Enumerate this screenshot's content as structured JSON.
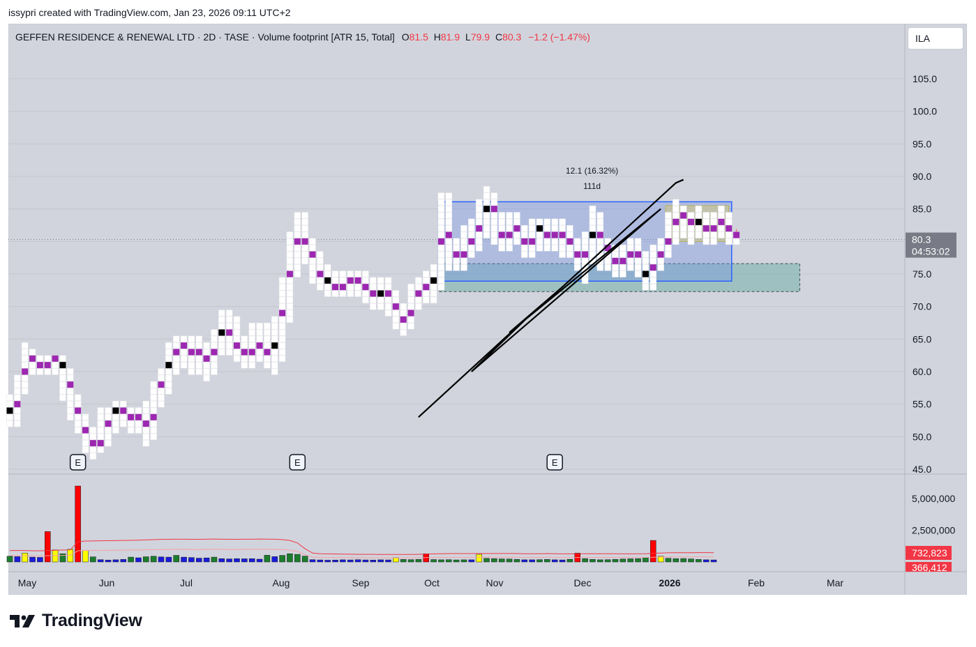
{
  "attribution": "issypri created with TradingView.com, Jan 23, 2026 09:11 UTC+2",
  "legend": {
    "symbol": "GEFFEN RESIDENCE & RENEWAL LTD · 2D · TASE · Volume footprint [ATR 15, Total]",
    "o_label": "O",
    "o_value": "81.5",
    "h_label": "H",
    "h_value": "81.9",
    "l_label": "L",
    "l_value": "79.9",
    "c_label": "C",
    "c_value": "80.3",
    "change": "−1.2 (−1.47%)"
  },
  "currency": "ILA",
  "price_tag": {
    "price": "80.3",
    "countdown": "04:53:02"
  },
  "measure": {
    "change": "12.1 (16.32%)",
    "duration": "111d"
  },
  "volume_tags": [
    "732,823",
    "366,412"
  ],
  "earnings_label": "E",
  "brand": "TradingView",
  "colors": {
    "up": "#26a69a",
    "down": "#ef5350",
    "poc": "#9c27b0",
    "ma": "#f23645",
    "box_blue": "#2962ff",
    "box_teal": "#5fa8a0",
    "vol_green": "#1b7d2b",
    "vol_blue": "#1b1bdc",
    "vol_red": "#ff0000",
    "vol_yellow": "#ffff00"
  },
  "chart_data": [
    {
      "type": "candlestick-footprint",
      "title": "GEFFEN RESIDENCE & RENEWAL LTD · 2D · TASE · Volume footprint [ATR 15, Total]",
      "y_ticks": [
        45.0,
        50.0,
        55.0,
        60.0,
        65.0,
        70.0,
        75.0,
        80.0,
        85.0,
        90.0,
        95.0,
        100.0,
        105.0
      ],
      "y_tick_labels": [
        "45.0",
        "50.0",
        "55.0",
        "60.0",
        "65.0",
        "70.0",
        "75.0",
        "80.0",
        "85.0",
        "90.0",
        "95.0",
        "100.0",
        "105.0"
      ],
      "x_tick_labels": [
        "May",
        "Jun",
        "Jul",
        "Aug",
        "Sep",
        "Oct",
        "Nov",
        "Dec",
        "2026",
        "Feb",
        "Mar"
      ],
      "ylim": [
        45,
        108
      ],
      "last_price": 80.3,
      "bars": [
        [
          55,
          52,
          56,
          51.5
        ],
        [
          52,
          58,
          59,
          52
        ],
        [
          58,
          62,
          64,
          57
        ],
        [
          62,
          61,
          63,
          59.5
        ],
        [
          61,
          60,
          62,
          59.5
        ],
        [
          60,
          61,
          62,
          60
        ],
        [
          61,
          62,
          62,
          60
        ],
        [
          62,
          60,
          62,
          56
        ],
        [
          60,
          55,
          60,
          53
        ],
        [
          55,
          52,
          56,
          51
        ],
        [
          52,
          49,
          53,
          48
        ],
        [
          49,
          48,
          51,
          47
        ],
        [
          48,
          50,
          54,
          47.5
        ],
        [
          50,
          53,
          54,
          49
        ],
        [
          53,
          54,
          55,
          51
        ],
        [
          54,
          53,
          55,
          52
        ],
        [
          53,
          52,
          54,
          51
        ],
        [
          52,
          54,
          54,
          51
        ],
        [
          54,
          50,
          55,
          49
        ],
        [
          50,
          56,
          58,
          50
        ],
        [
          56,
          59,
          60,
          55
        ],
        [
          59,
          62,
          64,
          57
        ],
        [
          62,
          64,
          65,
          60
        ],
        [
          64,
          63,
          65,
          61
        ],
        [
          63,
          62,
          65,
          60
        ],
        [
          62,
          63,
          65,
          60
        ],
        [
          63,
          61,
          64,
          59
        ],
        [
          61,
          64,
          66,
          60
        ],
        [
          64,
          67,
          69,
          63
        ],
        [
          67,
          65,
          69,
          63
        ],
        [
          65,
          63,
          68,
          62
        ],
        [
          63,
          62,
          65,
          61
        ],
        [
          62,
          63,
          67,
          61
        ],
        [
          63,
          64,
          67,
          62
        ],
        [
          64,
          62,
          67,
          61
        ],
        [
          62,
          66,
          68,
          60
        ],
        [
          66,
          72,
          74,
          62
        ],
        [
          72,
          78,
          81,
          68
        ],
        [
          78,
          81,
          84,
          75
        ],
        [
          81,
          79,
          84,
          77
        ],
        [
          79,
          76,
          80,
          74
        ],
        [
          76,
          74,
          78,
          73
        ],
        [
          74,
          73,
          76,
          71.5
        ],
        [
          73,
          72,
          75,
          71.5
        ],
        [
          72,
          74,
          75,
          71.5
        ],
        [
          74,
          73,
          75,
          72
        ],
        [
          73,
          74,
          75,
          72
        ],
        [
          74,
          72,
          75,
          71
        ],
        [
          72,
          71,
          74,
          70
        ],
        [
          71,
          73,
          74,
          70
        ],
        [
          73,
          71,
          74,
          69
        ],
        [
          71,
          69,
          72,
          67
        ],
        [
          69,
          67,
          70,
          66
        ],
        [
          67,
          71,
          73,
          67
        ],
        [
          71,
          72,
          74,
          70
        ],
        [
          72,
          73,
          75,
          71
        ],
        [
          73,
          75,
          76,
          71
        ],
        [
          75,
          84,
          87,
          73
        ],
        [
          84,
          78,
          87,
          76
        ],
        [
          78,
          77,
          80,
          76
        ],
        [
          77,
          79,
          82,
          76
        ],
        [
          79,
          81,
          83,
          78
        ],
        [
          81,
          83,
          86,
          79
        ],
        [
          83,
          87,
          88,
          81
        ],
        [
          87,
          82,
          87,
          80
        ],
        [
          82,
          80,
          84,
          79
        ],
        [
          80,
          82,
          84,
          79
        ],
        [
          82,
          81,
          84,
          80
        ],
        [
          81,
          79,
          82,
          78
        ],
        [
          79,
          81,
          83,
          78
        ],
        [
          81,
          82,
          83,
          79
        ],
        [
          82,
          80,
          83,
          79
        ],
        [
          80,
          82,
          83,
          79
        ],
        [
          82,
          80,
          83,
          78
        ],
        [
          80,
          79,
          82,
          78
        ],
        [
          79,
          77,
          80,
          76
        ],
        [
          77,
          78,
          81,
          74
        ],
        [
          78,
          83,
          85,
          77
        ],
        [
          83,
          79,
          84,
          76
        ],
        [
          79,
          78,
          80,
          76
        ],
        [
          78,
          76,
          79,
          75
        ],
        [
          76,
          77,
          79,
          75
        ],
        [
          77,
          79,
          80,
          76
        ],
        [
          79,
          76,
          80,
          75
        ],
        [
          76,
          74,
          78,
          73
        ],
        [
          74,
          77,
          79,
          73
        ],
        [
          77,
          79,
          80,
          76
        ],
        [
          79,
          81,
          84,
          78
        ],
        [
          81,
          85,
          86,
          80
        ],
        [
          85,
          83,
          85,
          81
        ],
        [
          83,
          82,
          84,
          80
        ],
        [
          82,
          83,
          85,
          81
        ],
        [
          83,
          81,
          84,
          80
        ],
        [
          81,
          82,
          84,
          80
        ],
        [
          82,
          83,
          85,
          81
        ],
        [
          83,
          81,
          84,
          80
        ],
        [
          81.5,
          80.3,
          81.9,
          79.9
        ]
      ],
      "annotations": {
        "zigzag_path": [
          [
            54,
            53
          ],
          [
            69,
            69
          ],
          [
            61,
            60
          ],
          [
            86,
            85
          ],
          [
            66,
            66
          ],
          [
            73,
            73
          ],
          [
            88,
            89
          ],
          [
            89,
            89.5
          ]
        ],
        "range_box": {
          "top": 86.1,
          "bottom": 73.9,
          "start": 57,
          "end": 95
        },
        "support_zone": {
          "top": 76.6,
          "bottom": 72.3,
          "start": 57,
          "end": 104
        },
        "consolidation_box": {
          "top": 85.5,
          "bottom": 80.0,
          "start": 87,
          "end": 95
        },
        "earnings_markers": [
          9,
          38,
          72
        ]
      }
    },
    {
      "type": "bar",
      "title": "Volume",
      "y_tick_labels": [
        "5,000,000",
        "2,500,000"
      ],
      "ylim": [
        0,
        6500000
      ],
      "highlighted_values": [
        "732,823",
        "366,412"
      ],
      "values": [
        450000,
        420000,
        700000,
        380000,
        360000,
        2400000,
        950000,
        650000,
        1000000,
        6000000,
        900000,
        400000,
        180000,
        150000,
        170000,
        200000,
        380000,
        330000,
        410000,
        450000,
        400000,
        380000,
        520000,
        380000,
        350000,
        300000,
        320000,
        380000,
        260000,
        240000,
        260000,
        250000,
        260000,
        220000,
        530000,
        420000,
        520000,
        650000,
        600000,
        460000,
        180000,
        160000,
        140000,
        150000,
        170000,
        160000,
        180000,
        160000,
        150000,
        170000,
        160000,
        350000,
        200000,
        180000,
        200000,
        650000,
        190000,
        170000,
        180000,
        160000,
        170000,
        170000,
        600000,
        280000,
        260000,
        240000,
        230000,
        200000,
        170000,
        170000,
        180000,
        200000,
        170000,
        160000,
        210000,
        700000,
        260000,
        200000,
        170000,
        180000,
        200000,
        230000,
        250000,
        260000,
        350000,
        1700000,
        450000,
        290000,
        260000,
        270000,
        240000,
        200000,
        170000,
        160000
      ],
      "volume_ma": [
        900000,
        900000,
        900000,
        880000,
        880000,
        900000,
        920000,
        940000,
        950000,
        1600000,
        1650000,
        1660000,
        1670000,
        1680000,
        1690000,
        1700000,
        1710000,
        1720000,
        1740000,
        1760000,
        1780000,
        1790000,
        1800000,
        1800000,
        1790000,
        1790000,
        1800000,
        1810000,
        1800000,
        1790000,
        1790000,
        1800000,
        1800000,
        1810000,
        1800000,
        1800000,
        1760000,
        1700000,
        1500000,
        1050000,
        700000,
        650000,
        640000,
        630000,
        620000,
        610000,
        600000,
        600000,
        600000,
        590000,
        590000,
        590000,
        590000,
        590000,
        600000,
        620000,
        640000,
        650000,
        660000,
        660000,
        660000,
        660000,
        670000,
        670000,
        670000,
        670000,
        670000,
        660000,
        650000,
        650000,
        650000,
        660000,
        650000,
        640000,
        640000,
        640000,
        650000,
        650000,
        650000,
        650000,
        650000,
        640000,
        640000,
        640000,
        650000,
        680000,
        700000,
        720000,
        730000,
        730000,
        730000,
        735000,
        735000,
        733000
      ],
      "bar_colors": [
        "g",
        "b",
        "y",
        "b",
        "b",
        "r",
        "y",
        "g",
        "y",
        "r",
        "y",
        "g",
        "b",
        "b",
        "b",
        "b",
        "g",
        "b",
        "g",
        "g",
        "b",
        "b",
        "g",
        "b",
        "b",
        "b",
        "b",
        "g",
        "b",
        "b",
        "b",
        "b",
        "b",
        "b",
        "g",
        "b",
        "g",
        "g",
        "g",
        "g",
        "b",
        "b",
        "b",
        "b",
        "b",
        "b",
        "b",
        "b",
        "b",
        "b",
        "b",
        "y",
        "g",
        "g",
        "g",
        "r",
        "g",
        "g",
        "g",
        "g",
        "g",
        "b",
        "y",
        "g",
        "g",
        "g",
        "g",
        "g",
        "b",
        "b",
        "g",
        "g",
        "b",
        "b",
        "g",
        "r",
        "g",
        "g",
        "g",
        "g",
        "g",
        "g",
        "g",
        "g",
        "g",
        "r",
        "y",
        "g",
        "g",
        "g",
        "g",
        "g",
        "b",
        "b"
      ]
    }
  ]
}
